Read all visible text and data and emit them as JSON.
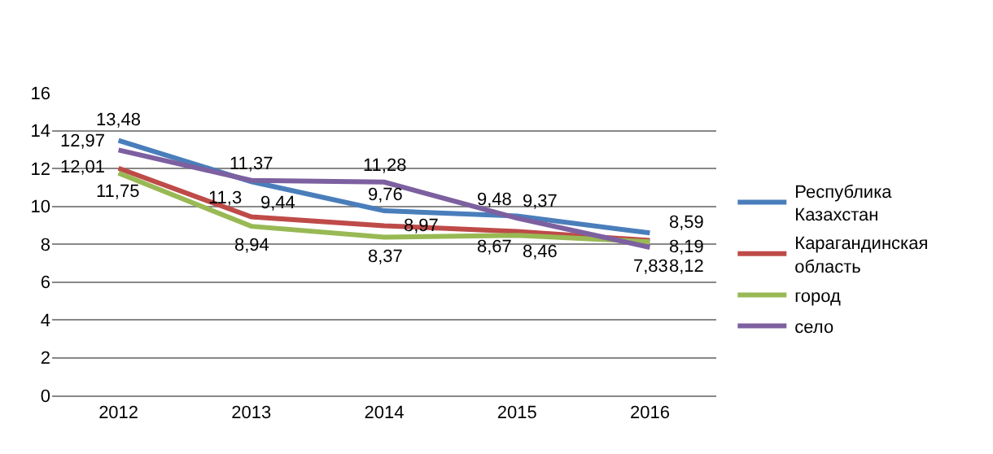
{
  "chart_data": {
    "type": "line",
    "categories": [
      "2012",
      "2013",
      "2014",
      "2015",
      "2016"
    ],
    "series": [
      {
        "name": "Республика Казахстан",
        "color": "#4a7ebb",
        "values": [
          13.48,
          11.3,
          9.76,
          9.48,
          8.59
        ],
        "value_labels": [
          "13,48",
          "11,3",
          "9,76",
          "9,48",
          "8,59"
        ]
      },
      {
        "name": "Карагандинская область",
        "color": "#be4b48",
        "values": [
          12.01,
          9.44,
          8.97,
          8.67,
          8.19
        ],
        "value_labels": [
          "12,01",
          "9,44",
          "8,97",
          "8,67",
          "8,19"
        ]
      },
      {
        "name": "город",
        "color": "#98b954",
        "values": [
          11.75,
          8.94,
          8.37,
          8.46,
          8.12
        ],
        "value_labels": [
          "11,75",
          "8,94",
          "8,37",
          "8,46",
          "8,12"
        ]
      },
      {
        "name": "село",
        "color": "#7d60a0",
        "values": [
          12.97,
          11.37,
          11.28,
          9.37,
          7.83
        ],
        "value_labels": [
          "12,97",
          "11,37",
          "11,28",
          "9,37",
          "7,83"
        ]
      }
    ],
    "ylim": [
      0,
      16
    ],
    "yticks": [
      0,
      2,
      4,
      6,
      8,
      10,
      12,
      14,
      16
    ],
    "grid": "y",
    "legend": "right",
    "marker": "none",
    "line_style": "solid"
  }
}
